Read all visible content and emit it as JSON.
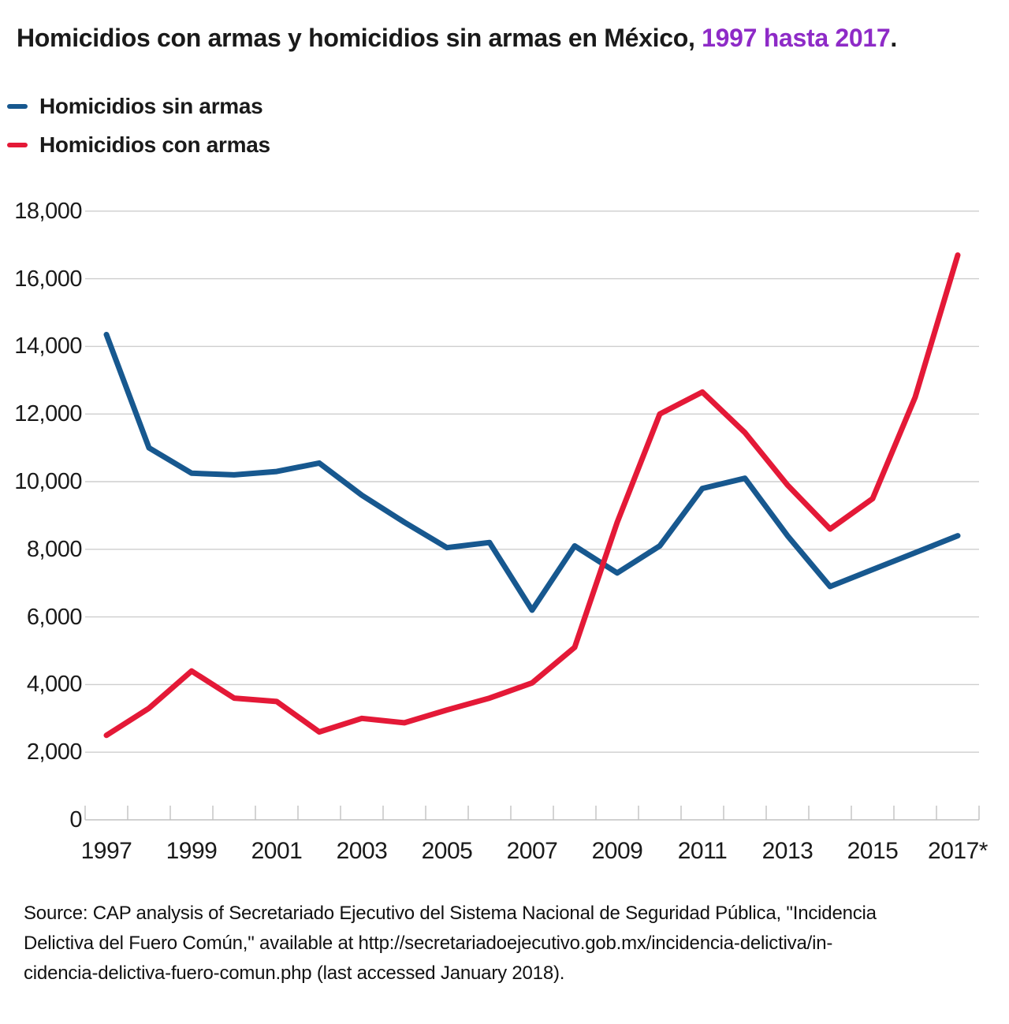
{
  "title": {
    "prefix": "Homicidios con armas y homicidios sin armas en México, ",
    "highlight": "1997 hasta 2017",
    "suffix": ".",
    "highlight_color": "#8E2BC7"
  },
  "legend": [
    {
      "label": "Homicidios sin armas",
      "color": "#17588F"
    },
    {
      "label": "Homicidios con armas",
      "color": "#E41937"
    }
  ],
  "chart_data": {
    "type": "line",
    "title": "Homicidios con armas y homicidios sin armas en México, 1997 hasta 2017.",
    "x": [
      1997,
      1998,
      1999,
      2000,
      2001,
      2002,
      2003,
      2004,
      2005,
      2006,
      2007,
      2008,
      2009,
      2010,
      2011,
      2012,
      2013,
      2014,
      2015,
      2016,
      2017
    ],
    "x_tick_labels": [
      "1997",
      "1999",
      "2001",
      "2003",
      "2005",
      "2007",
      "2009",
      "2011",
      "2013",
      "2015",
      "2017*"
    ],
    "series": [
      {
        "name": "Homicidios sin armas",
        "color": "#17588F",
        "values": [
          14350,
          11000,
          10250,
          10200,
          10300,
          10550,
          9600,
          8800,
          8050,
          8200,
          6200,
          8100,
          7300,
          8100,
          9800,
          10100,
          8400,
          6900,
          7400,
          7900,
          8400
        ]
      },
      {
        "name": "Homicidios con armas",
        "color": "#E41937",
        "values": [
          2500,
          3300,
          4400,
          3600,
          3500,
          2600,
          3000,
          2870,
          3250,
          3600,
          4050,
          5100,
          8800,
          12000,
          12650,
          11450,
          9900,
          8600,
          9500,
          12500,
          16700
        ]
      }
    ],
    "ylim": [
      0,
      18000
    ],
    "y_ticks": [
      0,
      2000,
      4000,
      6000,
      8000,
      10000,
      12000,
      14000,
      16000,
      18000
    ],
    "y_tick_labels": [
      "0",
      "2,000",
      "4,000",
      "6,000",
      "8,000",
      "10,000",
      "12,000",
      "14,000",
      "16,000",
      "18,000"
    ],
    "grid": "horizontal",
    "legend_position": "top-left"
  },
  "colors": {
    "gridline": "#CECECE",
    "axis": "#C2C2C2",
    "text": "#1A1A1A"
  },
  "source": {
    "lines": [
      "Source: CAP analysis of Secretariado Ejecutivo del Sistema Nacional de Seguridad Pública, \"Incidencia",
      "Delictiva del Fuero Común,\" available at http://secretariadoejecutivo.gob.mx/incidencia-delictiva/in-",
      "cidencia-delictiva-fuero-comun.php (last accessed January 2018)."
    ]
  }
}
